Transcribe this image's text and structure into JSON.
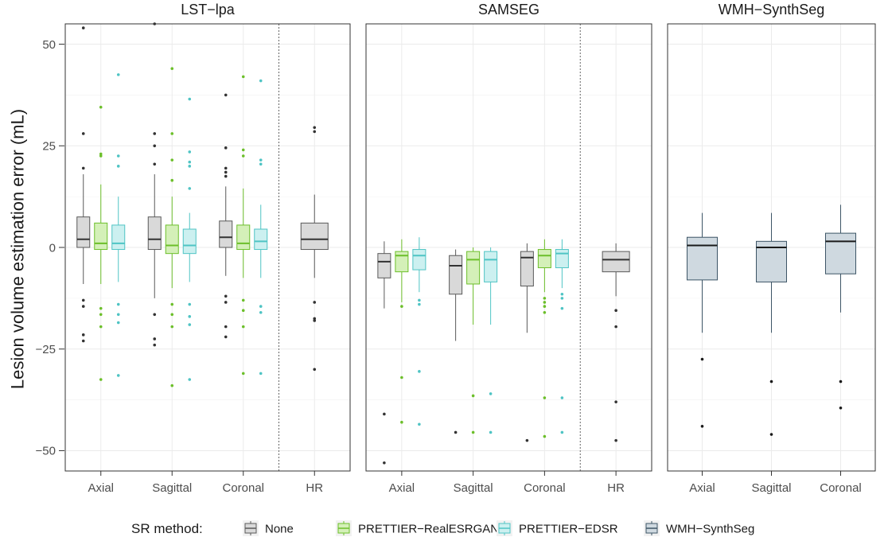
{
  "chart_data": {
    "type": "boxplot",
    "title": "",
    "xlabel": "",
    "ylabel": "Lesion volume estimation error (mL)",
    "ylim": [
      -55,
      55
    ],
    "yticks": [
      -50,
      -25,
      0,
      25,
      50
    ],
    "legend": {
      "title": "SR method:",
      "position": "bottom",
      "entries": [
        {
          "name": "None",
          "fill": "#d9d9d9",
          "stroke": "#595959"
        },
        {
          "name": "PRETTIER−RealESRGAN",
          "fill": "#d4f0b8",
          "stroke": "#6cbf2a"
        },
        {
          "name": "PRETTIER−EDSR",
          "fill": "#ccf0f0",
          "stroke": "#4fc4c4"
        },
        {
          "name": "WMH−SynthSeg",
          "fill": "#cfd9e0",
          "stroke": "#3d5566"
        }
      ]
    },
    "panels": [
      {
        "title": "LST−lpa",
        "categories": [
          "Axial",
          "Sagittal",
          "Coronal",
          "HR"
        ],
        "separator_before": "HR",
        "boxes": [
          {
            "category": "Axial",
            "series": "None",
            "min": -9,
            "q1": 0,
            "median": 2,
            "q3": 7.5,
            "max": 18,
            "outliers": [
              54,
              28,
              19.5,
              -13,
              -14.5,
              -21.5,
              -23
            ]
          },
          {
            "category": "Axial",
            "series": "PRETTIER−RealESRGAN",
            "min": -9,
            "q1": -0.5,
            "median": 1,
            "q3": 6,
            "max": 15.5,
            "outliers": [
              34.5,
              23,
              22.5,
              -15,
              -16.5,
              -19.5,
              -32.5
            ]
          },
          {
            "category": "Axial",
            "series": "PRETTIER−EDSR",
            "min": -8.5,
            "q1": -0.5,
            "median": 1,
            "q3": 5.5,
            "max": 12.5,
            "outliers": [
              42.5,
              22.5,
              20,
              -14,
              -16.5,
              -18.5,
              -31.5
            ]
          },
          {
            "category": "Sagittal",
            "series": "None",
            "min": -12.5,
            "q1": -0.5,
            "median": 2,
            "q3": 7.5,
            "max": 18,
            "outliers": [
              55,
              28,
              25,
              20.5,
              -16.5,
              -22.5,
              -24
            ]
          },
          {
            "category": "Sagittal",
            "series": "PRETTIER−RealESRGAN",
            "min": -10,
            "q1": -1.5,
            "median": 0.5,
            "q3": 5.5,
            "max": 12.5,
            "outliers": [
              44,
              28,
              21.5,
              16.5,
              -14,
              -16.5,
              -19.5,
              -34
            ]
          },
          {
            "category": "Sagittal",
            "series": "PRETTIER−EDSR",
            "min": -8.5,
            "q1": -1.5,
            "median": 0.5,
            "q3": 4.5,
            "max": 8.5,
            "outliers": [
              36.5,
              23.5,
              21,
              20,
              14.5,
              -14,
              -17,
              -19,
              -32.5
            ]
          },
          {
            "category": "Coronal",
            "series": "None",
            "min": -7,
            "q1": 0,
            "median": 2.5,
            "q3": 6.5,
            "max": 15,
            "outliers": [
              37.5,
              24.5,
              19.5,
              18.5,
              17.5,
              -12,
              -13.5,
              -19.5,
              -22
            ]
          },
          {
            "category": "Coronal",
            "series": "PRETTIER−RealESRGAN",
            "min": -7.5,
            "q1": -0.5,
            "median": 1,
            "q3": 5.5,
            "max": 14.5,
            "outliers": [
              42,
              24,
              22.5,
              -13,
              -15.5,
              -19.5,
              -31
            ]
          },
          {
            "category": "Coronal",
            "series": "PRETTIER−EDSR",
            "min": -7.5,
            "q1": -0.5,
            "median": 1.5,
            "q3": 4.5,
            "max": 10.5,
            "outliers": [
              41,
              21.5,
              20.5,
              -14.5,
              -16,
              -31
            ]
          },
          {
            "category": "HR",
            "series": "None",
            "min": -7.5,
            "q1": -0.5,
            "median": 2,
            "q3": 6,
            "max": 13,
            "outliers": [
              29.5,
              28.5,
              -13.5,
              -17.5,
              -18,
              -30
            ]
          }
        ]
      },
      {
        "title": "SAMSEG",
        "categories": [
          "Axial",
          "Sagittal",
          "Coronal",
          "HR"
        ],
        "separator_before": "HR",
        "boxes": [
          {
            "category": "Axial",
            "series": "None",
            "min": -15,
            "q1": -7.5,
            "median": -3.5,
            "q3": -1.5,
            "max": 1.5,
            "outliers": [
              -41,
              -53
            ]
          },
          {
            "category": "Axial",
            "series": "PRETTIER−RealESRGAN",
            "min": -13.5,
            "q1": -6,
            "median": -2,
            "q3": -1,
            "max": 2,
            "outliers": [
              -14.5,
              -32,
              -43
            ]
          },
          {
            "category": "Axial",
            "series": "PRETTIER−EDSR",
            "min": -11,
            "q1": -5.5,
            "median": -2,
            "q3": -0.5,
            "max": 2.5,
            "outliers": [
              -13,
              -14,
              -30.5,
              -43.5
            ]
          },
          {
            "category": "Sagittal",
            "series": "None",
            "min": -23,
            "q1": -11.5,
            "median": -4.5,
            "q3": -2,
            "max": -0.5,
            "outliers": [
              -45.5
            ]
          },
          {
            "category": "Sagittal",
            "series": "PRETTIER−RealESRGAN",
            "min": -19,
            "q1": -9,
            "median": -3,
            "q3": -1,
            "max": 0,
            "outliers": [
              -36.5,
              -45.5
            ]
          },
          {
            "category": "Sagittal",
            "series": "PRETTIER−EDSR",
            "min": -19,
            "q1": -8.5,
            "median": -3,
            "q3": -1,
            "max": 0,
            "outliers": [
              -36,
              -45.5
            ]
          },
          {
            "category": "Coronal",
            "series": "None",
            "min": -21,
            "q1": -9.5,
            "median": -2.5,
            "q3": -1,
            "max": 1,
            "outliers": [
              -47.5
            ]
          },
          {
            "category": "Coronal",
            "series": "PRETTIER−RealESRGAN",
            "min": -11,
            "q1": -5,
            "median": -2,
            "q3": -0.5,
            "max": 2,
            "outliers": [
              -12.5,
              -13.5,
              -14.5,
              -16,
              -37,
              -46.5
            ]
          },
          {
            "category": "Coronal",
            "series": "PRETTIER−EDSR",
            "min": -10,
            "q1": -5,
            "median": -1.5,
            "q3": -0.5,
            "max": 2,
            "outliers": [
              -11.5,
              -12.5,
              -15,
              -37,
              -45.5
            ]
          },
          {
            "category": "HR",
            "series": "None",
            "min": -12,
            "q1": -6,
            "median": -3,
            "q3": -1,
            "max": 1,
            "outliers": [
              -15.5,
              -19.5,
              -38,
              -47.5
            ]
          }
        ]
      },
      {
        "title": "WMH−SynthSeg",
        "categories": [
          "Axial",
          "Sagittal",
          "Coronal"
        ],
        "separator_before": null,
        "boxes": [
          {
            "category": "Axial",
            "series": "WMH−SynthSeg",
            "min": -21,
            "q1": -8,
            "median": 0.5,
            "q3": 2.5,
            "max": 8.5,
            "outliers": [
              -27.5,
              -44
            ]
          },
          {
            "category": "Sagittal",
            "series": "WMH−SynthSeg",
            "min": -21,
            "q1": -8.5,
            "median": 0,
            "q3": 1.5,
            "max": 8.5,
            "outliers": [
              -33,
              -46
            ]
          },
          {
            "category": "Coronal",
            "series": "WMH−SynthSeg",
            "min": -16,
            "q1": -6.5,
            "median": 1.5,
            "q3": 3.5,
            "max": 10.5,
            "outliers": [
              -33,
              -39.5
            ]
          }
        ]
      }
    ]
  }
}
